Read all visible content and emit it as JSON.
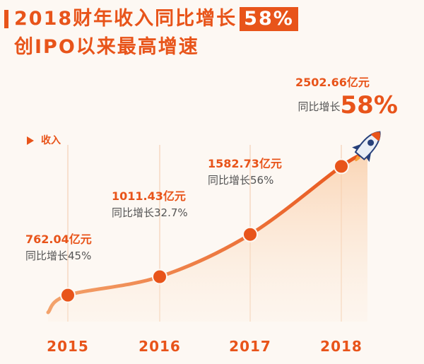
{
  "title": {
    "line1_prefix": "2018财年收入同比增长",
    "line1_highlight": "58%",
    "line2": "创IPO以来最高增速"
  },
  "legend": {
    "label": "收入"
  },
  "colors": {
    "accent": "#e8541a",
    "fill": "#fbd9bc",
    "background": "#fdf8f3"
  },
  "chart_data": {
    "type": "area",
    "title": "2018财年收入同比增长58%",
    "ylabel": "收入",
    "unit": "亿元",
    "categories": [
      "2015",
      "2016",
      "2017",
      "2018"
    ],
    "values": [
      762.04,
      1011.43,
      1582.73,
      2502.66
    ],
    "growth_prefix": "同比增长",
    "growth_rates": [
      "45%",
      "32.7%",
      "56%",
      "58%"
    ],
    "value_labels": [
      "762.04亿元",
      "1011.43亿元",
      "1582.73亿元",
      "2502.66亿元"
    ]
  }
}
